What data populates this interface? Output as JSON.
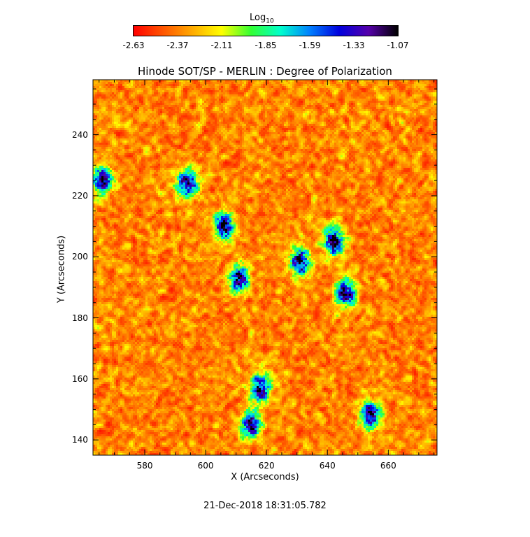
{
  "chart_data": {
    "type": "heatmap",
    "title": "Hinode SOT/SP - MERLIN : Degree of Polarization",
    "xlabel": "X (Arcseconds)",
    "ylabel": "Y (Arcseconds)",
    "xlim": [
      563,
      676
    ],
    "ylim": [
      135,
      258
    ],
    "x_ticks": [
      "580",
      "600",
      "620",
      "640",
      "660"
    ],
    "y_ticks": [
      "140",
      "160",
      "180",
      "200",
      "220",
      "240"
    ],
    "x_tick_values": [
      580,
      600,
      620,
      640,
      660
    ],
    "y_tick_values": [
      140,
      160,
      180,
      200,
      220,
      240
    ],
    "colorbar": {
      "title": "Log",
      "title_subscript": "10",
      "ticks": [
        "-2.63",
        "-2.37",
        "-2.11",
        "-1.85",
        "-1.59",
        "-1.33",
        "-1.07"
      ],
      "range": [
        -2.63,
        -1.07
      ],
      "colors": [
        "#ff0000",
        "#ff5500",
        "#ffaa00",
        "#ffff00",
        "#33ff33",
        "#00ffcc",
        "#0080ff",
        "#0000dd",
        "#5500aa",
        "#000000"
      ]
    },
    "features": [
      {
        "label": "high polarization patch",
        "x": 566,
        "y": 225
      },
      {
        "label": "high polarization patch",
        "x": 594,
        "y": 224
      },
      {
        "label": "high polarization patch",
        "x": 606,
        "y": 210
      },
      {
        "label": "high polarization patch",
        "x": 611,
        "y": 193
      },
      {
        "label": "high polarization patch",
        "x": 631,
        "y": 198
      },
      {
        "label": "high polarization patch",
        "x": 646,
        "y": 188
      },
      {
        "label": "high polarization patch",
        "x": 642,
        "y": 205
      },
      {
        "label": "high polarization patch",
        "x": 618,
        "y": 157
      },
      {
        "label": "high polarization patch",
        "x": 615,
        "y": 145
      },
      {
        "label": "high polarization patch",
        "x": 654,
        "y": 148
      }
    ]
  },
  "timestamp": "21-Dec-2018 18:31:05.782"
}
